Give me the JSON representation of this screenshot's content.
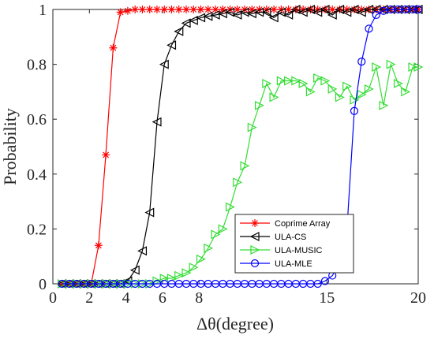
{
  "chart_data": {
    "type": "line",
    "title": "",
    "xlabel": "Δθ(degree)",
    "ylabel": "Probability",
    "xlim": [
      0,
      20
    ],
    "ylim": [
      0,
      1
    ],
    "xticks": [
      0,
      2,
      4,
      6,
      8,
      15,
      20
    ],
    "yticks": [
      0,
      0.2,
      0.4,
      0.6,
      0.8,
      1
    ],
    "grid": false,
    "legend_position": "bottom-right",
    "x": [
      0.5,
      0.9,
      1.3,
      1.7,
      2.1,
      2.5,
      2.9,
      3.3,
      3.7,
      4.1,
      4.5,
      4.9,
      5.3,
      5.7,
      6.1,
      6.5,
      6.9,
      7.3,
      7.7,
      8.1,
      8.5,
      8.9,
      9.3,
      9.7,
      10.1,
      10.5,
      10.9,
      11.3,
      11.7,
      12.1,
      12.5,
      12.9,
      13.3,
      13.7,
      14.1,
      14.5,
      14.9,
      15.3,
      15.7,
      16.1,
      16.5,
      16.9,
      17.3,
      17.7,
      18.1,
      18.5,
      18.9,
      19.3,
      19.7,
      20.0
    ],
    "series": [
      {
        "name": "Coprime Array",
        "color": "#ff0000",
        "marker": "asterisk",
        "values": [
          0,
          0,
          0,
          0,
          0,
          0.14,
          0.47,
          0.86,
          0.99,
          0.995,
          1,
          1,
          1,
          1,
          1,
          1,
          1,
          1,
          1,
          1,
          1,
          1,
          1,
          1,
          1,
          1,
          1,
          1,
          1,
          1,
          1,
          1,
          1,
          1,
          1,
          1,
          1,
          1,
          1,
          1,
          1,
          1,
          1,
          1,
          1,
          1,
          1,
          1,
          1,
          1
        ]
      },
      {
        "name": "ULA-CS",
        "color": "#000000",
        "marker": "triangle-left",
        "values": [
          0,
          0,
          0,
          0,
          0,
          0,
          0,
          0,
          0,
          0.01,
          0.05,
          0.12,
          0.26,
          0.59,
          0.8,
          0.87,
          0.92,
          0.95,
          0.96,
          0.97,
          0.975,
          0.98,
          0.985,
          0.99,
          0.98,
          0.99,
          0.985,
          0.99,
          0.99,
          0.97,
          0.99,
          0.98,
          1,
          0.99,
          1,
          0.99,
          1,
          0.98,
          1,
          0.99,
          1,
          0.99,
          1,
          1,
          1,
          1,
          1,
          1,
          1,
          1
        ]
      },
      {
        "name": "ULA-MUSIC",
        "color": "#33dd33",
        "marker": "triangle-right",
        "values": [
          0,
          0,
          0,
          0,
          0,
          0,
          0,
          0,
          0,
          0,
          0,
          0,
          0,
          0.01,
          0.02,
          0.02,
          0.03,
          0.04,
          0.06,
          0.09,
          0.13,
          0.18,
          0.2,
          0.28,
          0.37,
          0.43,
          0.57,
          0.65,
          0.73,
          0.68,
          0.74,
          0.74,
          0.74,
          0.73,
          0.7,
          0.75,
          0.74,
          0.71,
          0.68,
          0.72,
          0.67,
          0.69,
          0.71,
          0.79,
          0.65,
          0.8,
          0.73,
          0.7,
          0.79,
          0.79
        ]
      },
      {
        "name": "ULA-MLE",
        "color": "#0000ff",
        "marker": "circle",
        "values": [
          0,
          0,
          0,
          0,
          0,
          0,
          0,
          0,
          0,
          0,
          0,
          0,
          0,
          0,
          0,
          0,
          0,
          0,
          0,
          0,
          0,
          0,
          0,
          0,
          0,
          0,
          0,
          0,
          0,
          0,
          0,
          0,
          0,
          0,
          0,
          0,
          0.01,
          0.03,
          0.08,
          0.2,
          0.63,
          0.81,
          0.93,
          0.98,
          0.995,
          1,
          1,
          1,
          1,
          1
        ]
      }
    ]
  }
}
